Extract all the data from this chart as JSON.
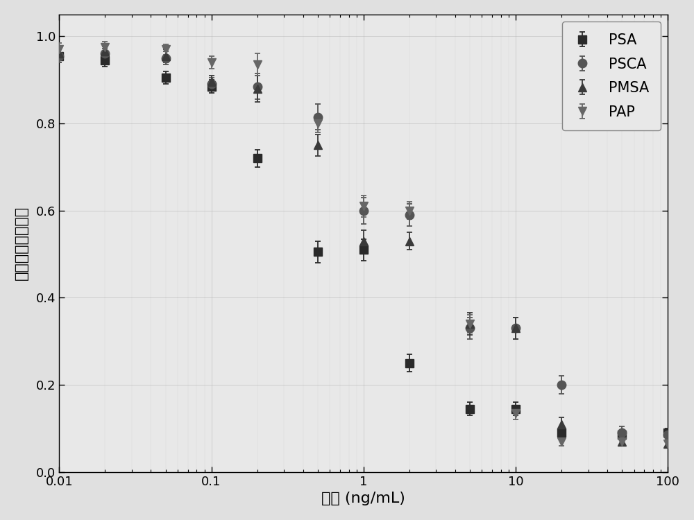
{
  "title": "",
  "xlabel": "浓度 (ng/mL)",
  "ylabel_chars": [
    "荧",
    "光",
    "信",
    "号",
    "强",
    "度",
    "比",
    "値"
  ],
  "xlim": [
    0.01,
    100
  ],
  "ylim": [
    0.0,
    1.05
  ],
  "plot_bg": "#e8e8e8",
  "fig_bg": "#e0e0e0",
  "series": {
    "PSA": {
      "x": [
        0.01,
        0.02,
        0.05,
        0.1,
        0.2,
        0.5,
        1,
        2,
        5,
        10,
        20,
        50,
        100
      ],
      "y": [
        0.955,
        0.945,
        0.905,
        0.885,
        0.72,
        0.505,
        0.51,
        0.25,
        0.145,
        0.145,
        0.09,
        0.085,
        0.09
      ],
      "yerr": [
        0.015,
        0.015,
        0.015,
        0.015,
        0.02,
        0.025,
        0.025,
        0.02,
        0.015,
        0.015,
        0.015,
        0.01,
        0.01
      ],
      "marker": "s",
      "color": "#2a2a2a",
      "label": "PSA"
    },
    "PSCA": {
      "x": [
        0.01,
        0.02,
        0.05,
        0.1,
        0.2,
        0.5,
        1,
        2,
        5,
        10,
        20,
        50,
        100
      ],
      "y": [
        0.955,
        0.96,
        0.95,
        0.89,
        0.885,
        0.815,
        0.6,
        0.59,
        0.33,
        0.33,
        0.2,
        0.09,
        0.085
      ],
      "yerr": [
        0.015,
        0.012,
        0.015,
        0.015,
        0.03,
        0.03,
        0.03,
        0.025,
        0.025,
        0.025,
        0.02,
        0.015,
        0.01
      ],
      "marker": "o",
      "color": "#555555",
      "label": "PSCA"
    },
    "PMSA": {
      "x": [
        0.01,
        0.02,
        0.05,
        0.1,
        0.2,
        0.5,
        1,
        2,
        5,
        10,
        20,
        50,
        100
      ],
      "y": [
        0.96,
        0.965,
        0.955,
        0.895,
        0.88,
        0.75,
        0.53,
        0.53,
        0.34,
        0.33,
        0.11,
        0.07,
        0.065
      ],
      "yerr": [
        0.015,
        0.012,
        0.015,
        0.015,
        0.03,
        0.025,
        0.025,
        0.02,
        0.025,
        0.025,
        0.015,
        0.01,
        0.01
      ],
      "marker": "^",
      "color": "#3a3a3a",
      "label": "PMSA"
    },
    "PAP": {
      "x": [
        0.01,
        0.02,
        0.05,
        0.1,
        0.2,
        0.5,
        1,
        2,
        5,
        10,
        20,
        50,
        100
      ],
      "y": [
        0.97,
        0.975,
        0.97,
        0.94,
        0.935,
        0.8,
        0.61,
        0.6,
        0.34,
        0.135,
        0.07,
        0.07,
        0.065
      ],
      "yerr": [
        0.015,
        0.012,
        0.012,
        0.015,
        0.025,
        0.02,
        0.025,
        0.02,
        0.02,
        0.015,
        0.01,
        0.01,
        0.01
      ],
      "marker": "v",
      "color": "#666666",
      "label": "PAP"
    }
  },
  "legend_fontsize": 15,
  "axis_fontsize": 16,
  "tick_fontsize": 13,
  "marker_size": 9,
  "line_width": 1.6,
  "elinewidth": 1.3,
  "capsize": 3
}
